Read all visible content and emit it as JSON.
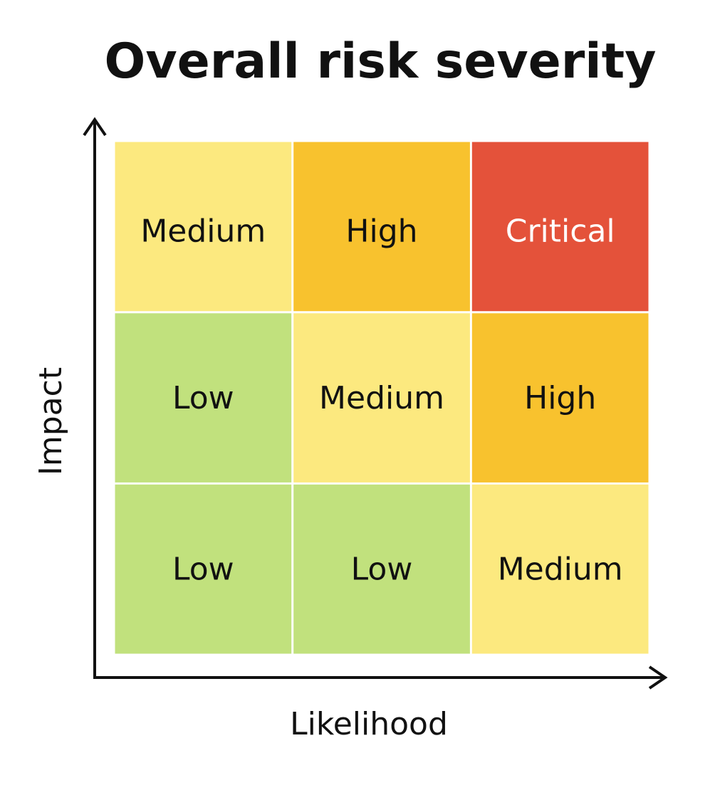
{
  "chart_data": {
    "type": "heatmap",
    "title": "Overall risk severity",
    "xlabel": "Likelihood",
    "ylabel": "Impact",
    "rows": [
      [
        {
          "label": "Medium",
          "color": "#FCE97F",
          "text_color": "#111111"
        },
        {
          "label": "High",
          "color": "#F8C22E",
          "text_color": "#111111"
        },
        {
          "label": "Critical",
          "color": "#E4523A",
          "text_color": "#FFFFFF"
        }
      ],
      [
        {
          "label": "Low",
          "color": "#C1E17D",
          "text_color": "#111111"
        },
        {
          "label": "Medium",
          "color": "#FCE97F",
          "text_color": "#111111"
        },
        {
          "label": "High",
          "color": "#F8C22E",
          "text_color": "#111111"
        }
      ],
      [
        {
          "label": "Low",
          "color": "#C1E17D",
          "text_color": "#111111"
        },
        {
          "label": "Low",
          "color": "#C1E17D",
          "text_color": "#111111"
        },
        {
          "label": "Medium",
          "color": "#FCE97F",
          "text_color": "#111111"
        }
      ]
    ],
    "grid": false,
    "legend": "none"
  }
}
